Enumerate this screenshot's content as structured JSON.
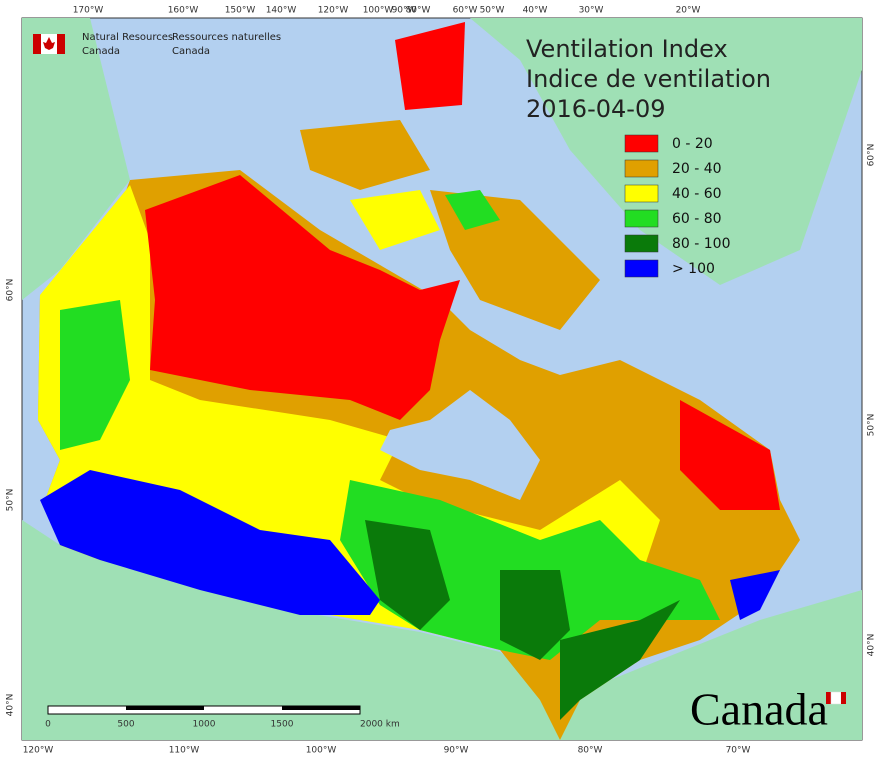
{
  "header": {
    "department_en": [
      "Natural Resources",
      "Canada"
    ],
    "department_fr": [
      "Ressources naturelles",
      "Canada"
    ]
  },
  "title": {
    "lines": [
      "Ventilation Index",
      "Indice de ventilation"
    ],
    "date": "2016-04-09"
  },
  "legend": [
    {
      "label": "0 - 20",
      "color": "#ff0000"
    },
    {
      "label": "20 - 40",
      "color": "#e0a000"
    },
    {
      "label": "40 - 60",
      "color": "#ffff00"
    },
    {
      "label": "60 - 80",
      "color": "#22dd22"
    },
    {
      "label": "80 - 100",
      "color": "#0a7a0a"
    },
    {
      "label": "> 100",
      "color": "#0000ff"
    }
  ],
  "graticule": {
    "top": [
      "170°W",
      "160°W",
      "150°W",
      "140°W",
      "120°W",
      "100°W",
      "90°W",
      "80°W",
      "60°W",
      "50°W",
      "40°W",
      "30°W",
      "20°W"
    ],
    "bottom": [
      "120°W",
      "110°W",
      "100°W",
      "90°W",
      "80°W",
      "70°W"
    ],
    "left": [
      "60°N",
      "50°N",
      "40°N"
    ],
    "right": [
      "60°N",
      "50°N",
      "40°N"
    ]
  },
  "scale_bar": {
    "labels": [
      "0",
      "500",
      "1000",
      "1500",
      "2000  km"
    ]
  },
  "wordmark": "Canada"
}
